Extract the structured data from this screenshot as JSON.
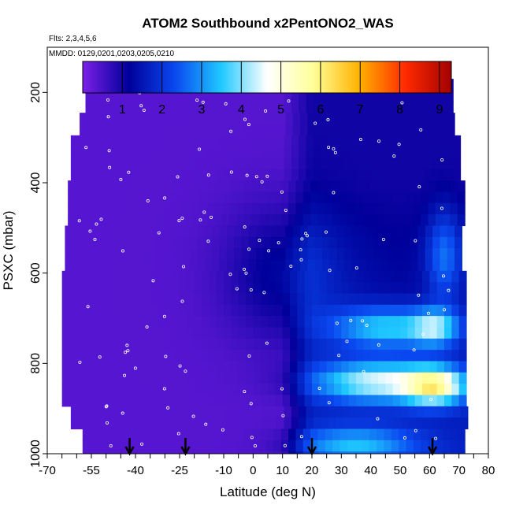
{
  "chart_data": {
    "type": "heatmap",
    "title": "ATOM2 Southbound x2PentONO2_WAS",
    "subtitle_flights": "Flts: 2,3,4,5,6",
    "subtitle_dates": "MMDD: 0129,0201,0203,0205,0210",
    "xlabel": "Latitude (deg N)",
    "ylabel": "PSXC (mbar)",
    "xlim": [
      -70,
      80
    ],
    "ylim": [
      1000,
      100
    ],
    "x_ticks_major": [
      -70,
      -55,
      -40,
      -25,
      -10,
      0,
      10,
      20,
      30,
      40,
      50,
      60,
      70,
      80
    ],
    "x_ticks_labeled": [
      "-70",
      "-55",
      "-40",
      "-25",
      "-10",
      "0",
      "10",
      "20",
      "30",
      "40",
      "50",
      "60",
      "70",
      "80"
    ],
    "y_ticks": [
      200,
      400,
      600,
      800,
      1000
    ],
    "y_tick_labels": [
      "200",
      "400",
      "600",
      "800",
      "1000"
    ],
    "colorbar": {
      "min": 0,
      "max": 9.3,
      "ticks": [
        1,
        2,
        3,
        4,
        5,
        6,
        7,
        8,
        9
      ],
      "tick_labels": [
        "1",
        "2",
        "3",
        "4",
        "5",
        "6",
        "7",
        "8",
        "9"
      ],
      "colors": [
        "#7b1fe8",
        "#00009a",
        "#0a48f0",
        "#1ec8ff",
        "#ffffff",
        "#ffff99",
        "#ffb300",
        "#ff2a00",
        "#a30000"
      ]
    },
    "flight_markers_lat": [
      -42,
      -23,
      20,
      61
    ],
    "lat_step": 2.5,
    "grid": false,
    "colorbar_placement": "top"
  }
}
